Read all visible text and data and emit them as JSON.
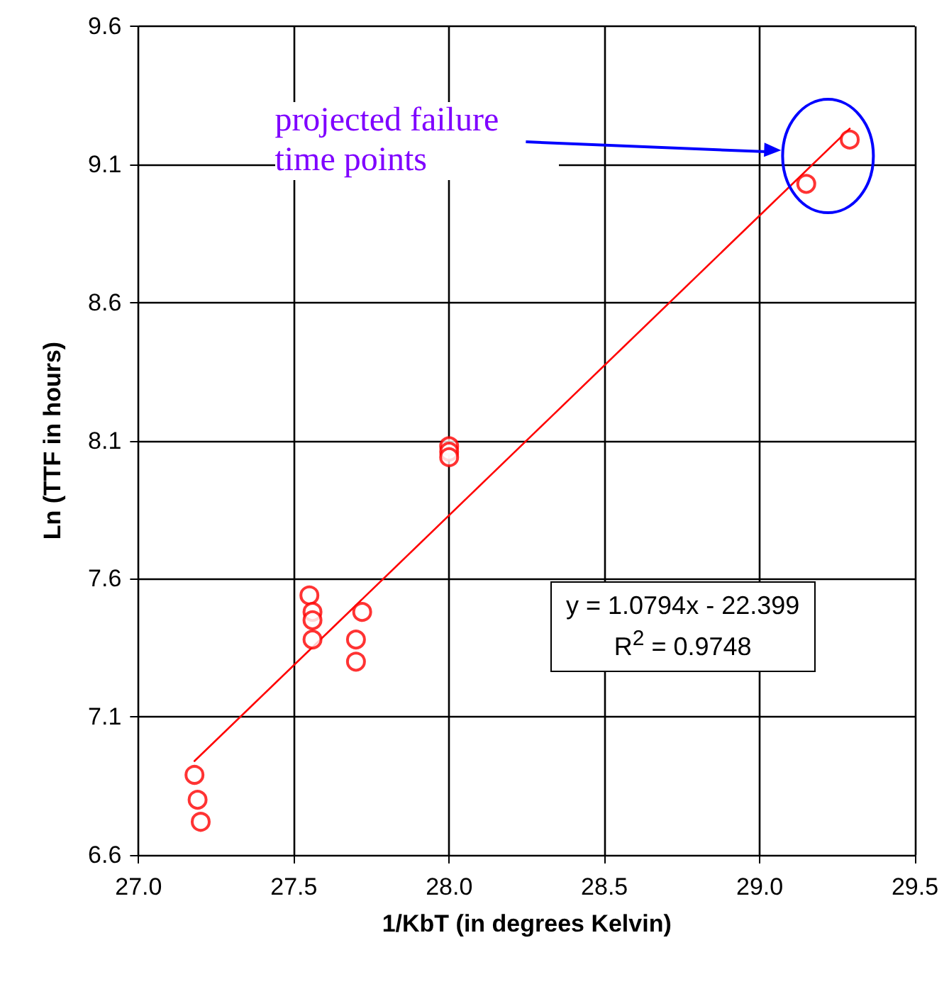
{
  "chart_data": {
    "type": "scatter",
    "xlabel": "1/KbT (in degrees Kelvin)",
    "ylabel": "Ln (TTF in hours)",
    "xlim": [
      27.0,
      29.5
    ],
    "xticks": [
      {
        "value": 27.0,
        "label": "27.0"
      },
      {
        "value": 27.5,
        "label": "27.5"
      },
      {
        "value": 28.0,
        "label": "28.0"
      },
      {
        "value": 28.5,
        "label": "28.5"
      },
      {
        "value": 29.0,
        "label": "29.0"
      },
      {
        "value": 29.5,
        "label": "29.5"
      }
    ],
    "ylim": [
      6.6,
      9.6
    ],
    "yticks": [
      6.6,
      7.1,
      7.6,
      8.1,
      8.6,
      9.1,
      9.6
    ],
    "grid": true,
    "marker": "circle",
    "series": [
      {
        "color": "#ff0000",
        "x": [
          27.18,
          27.19,
          27.2,
          27.55,
          27.56,
          27.56,
          27.56,
          27.7,
          27.7,
          27.72,
          28.0,
          28.0,
          28.0,
          29.15,
          29.29
        ],
        "values": [
          6.89,
          6.8,
          6.72,
          7.54,
          7.48,
          7.45,
          7.38,
          7.38,
          7.3,
          7.48,
          8.08,
          8.06,
          8.04,
          9.03,
          9.19
        ]
      },
      {
        "type": "line",
        "color": "#ff0000",
        "marker": "none",
        "x": [
          27.18,
          29.29
        ],
        "values": [
          6.94,
          9.23
        ]
      }
    ],
    "annotations": [
      "y = 1.0794x - 22.399",
      "R$^{2}$ = 0.9748",
      "projected failure time points"
    ]
  }
}
